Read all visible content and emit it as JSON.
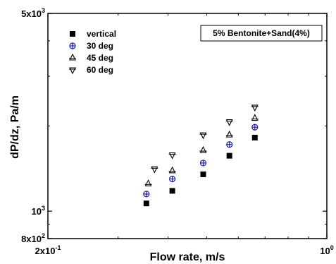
{
  "chart_data": {
    "type": "scatter",
    "xscale": "log",
    "yscale": "log",
    "xlim": [
      0.2,
      1.0
    ],
    "ylim": [
      800,
      5000
    ],
    "xlabel": "Flow rate, m/s",
    "ylabel": "dP/dz, Pa/m",
    "xtick_labels": [
      {
        "value": 0.2,
        "base": "2x10",
        "exp": "-1"
      },
      {
        "value": 1.0,
        "base": "10",
        "exp": "0"
      }
    ],
    "ytick_labels": [
      {
        "value": 800,
        "base": "8x10",
        "exp": "2"
      },
      {
        "value": 1000,
        "base": "10",
        "exp": "3"
      },
      {
        "value": 5000,
        "base": "5x10",
        "exp": "3"
      }
    ],
    "annotation": "5% Bentonite+Sand(4%)",
    "legend_position": "top-left",
    "series": [
      {
        "name": "vertical",
        "marker": "square",
        "x": [
          0.353,
          0.41,
          0.49,
          0.57,
          0.66
        ],
        "y": [
          1065,
          1180,
          1350,
          1570,
          1820
        ]
      },
      {
        "name": "30 deg",
        "marker": "circle-plus",
        "x": [
          0.353,
          0.41,
          0.49,
          0.57,
          0.66
        ],
        "y": [
          1150,
          1300,
          1480,
          1720,
          1980
        ]
      },
      {
        "name": "45 deg",
        "marker": "triangle-up",
        "x": [
          0.357,
          0.41,
          0.49,
          0.57,
          0.66
        ],
        "y": [
          1250,
          1390,
          1640,
          1860,
          2130
        ]
      },
      {
        "name": "60 deg",
        "marker": "triangle-down",
        "x": [
          0.37,
          0.41,
          0.49,
          0.57,
          0.66
        ],
        "y": [
          1410,
          1580,
          1860,
          2070,
          2330
        ]
      }
    ]
  }
}
